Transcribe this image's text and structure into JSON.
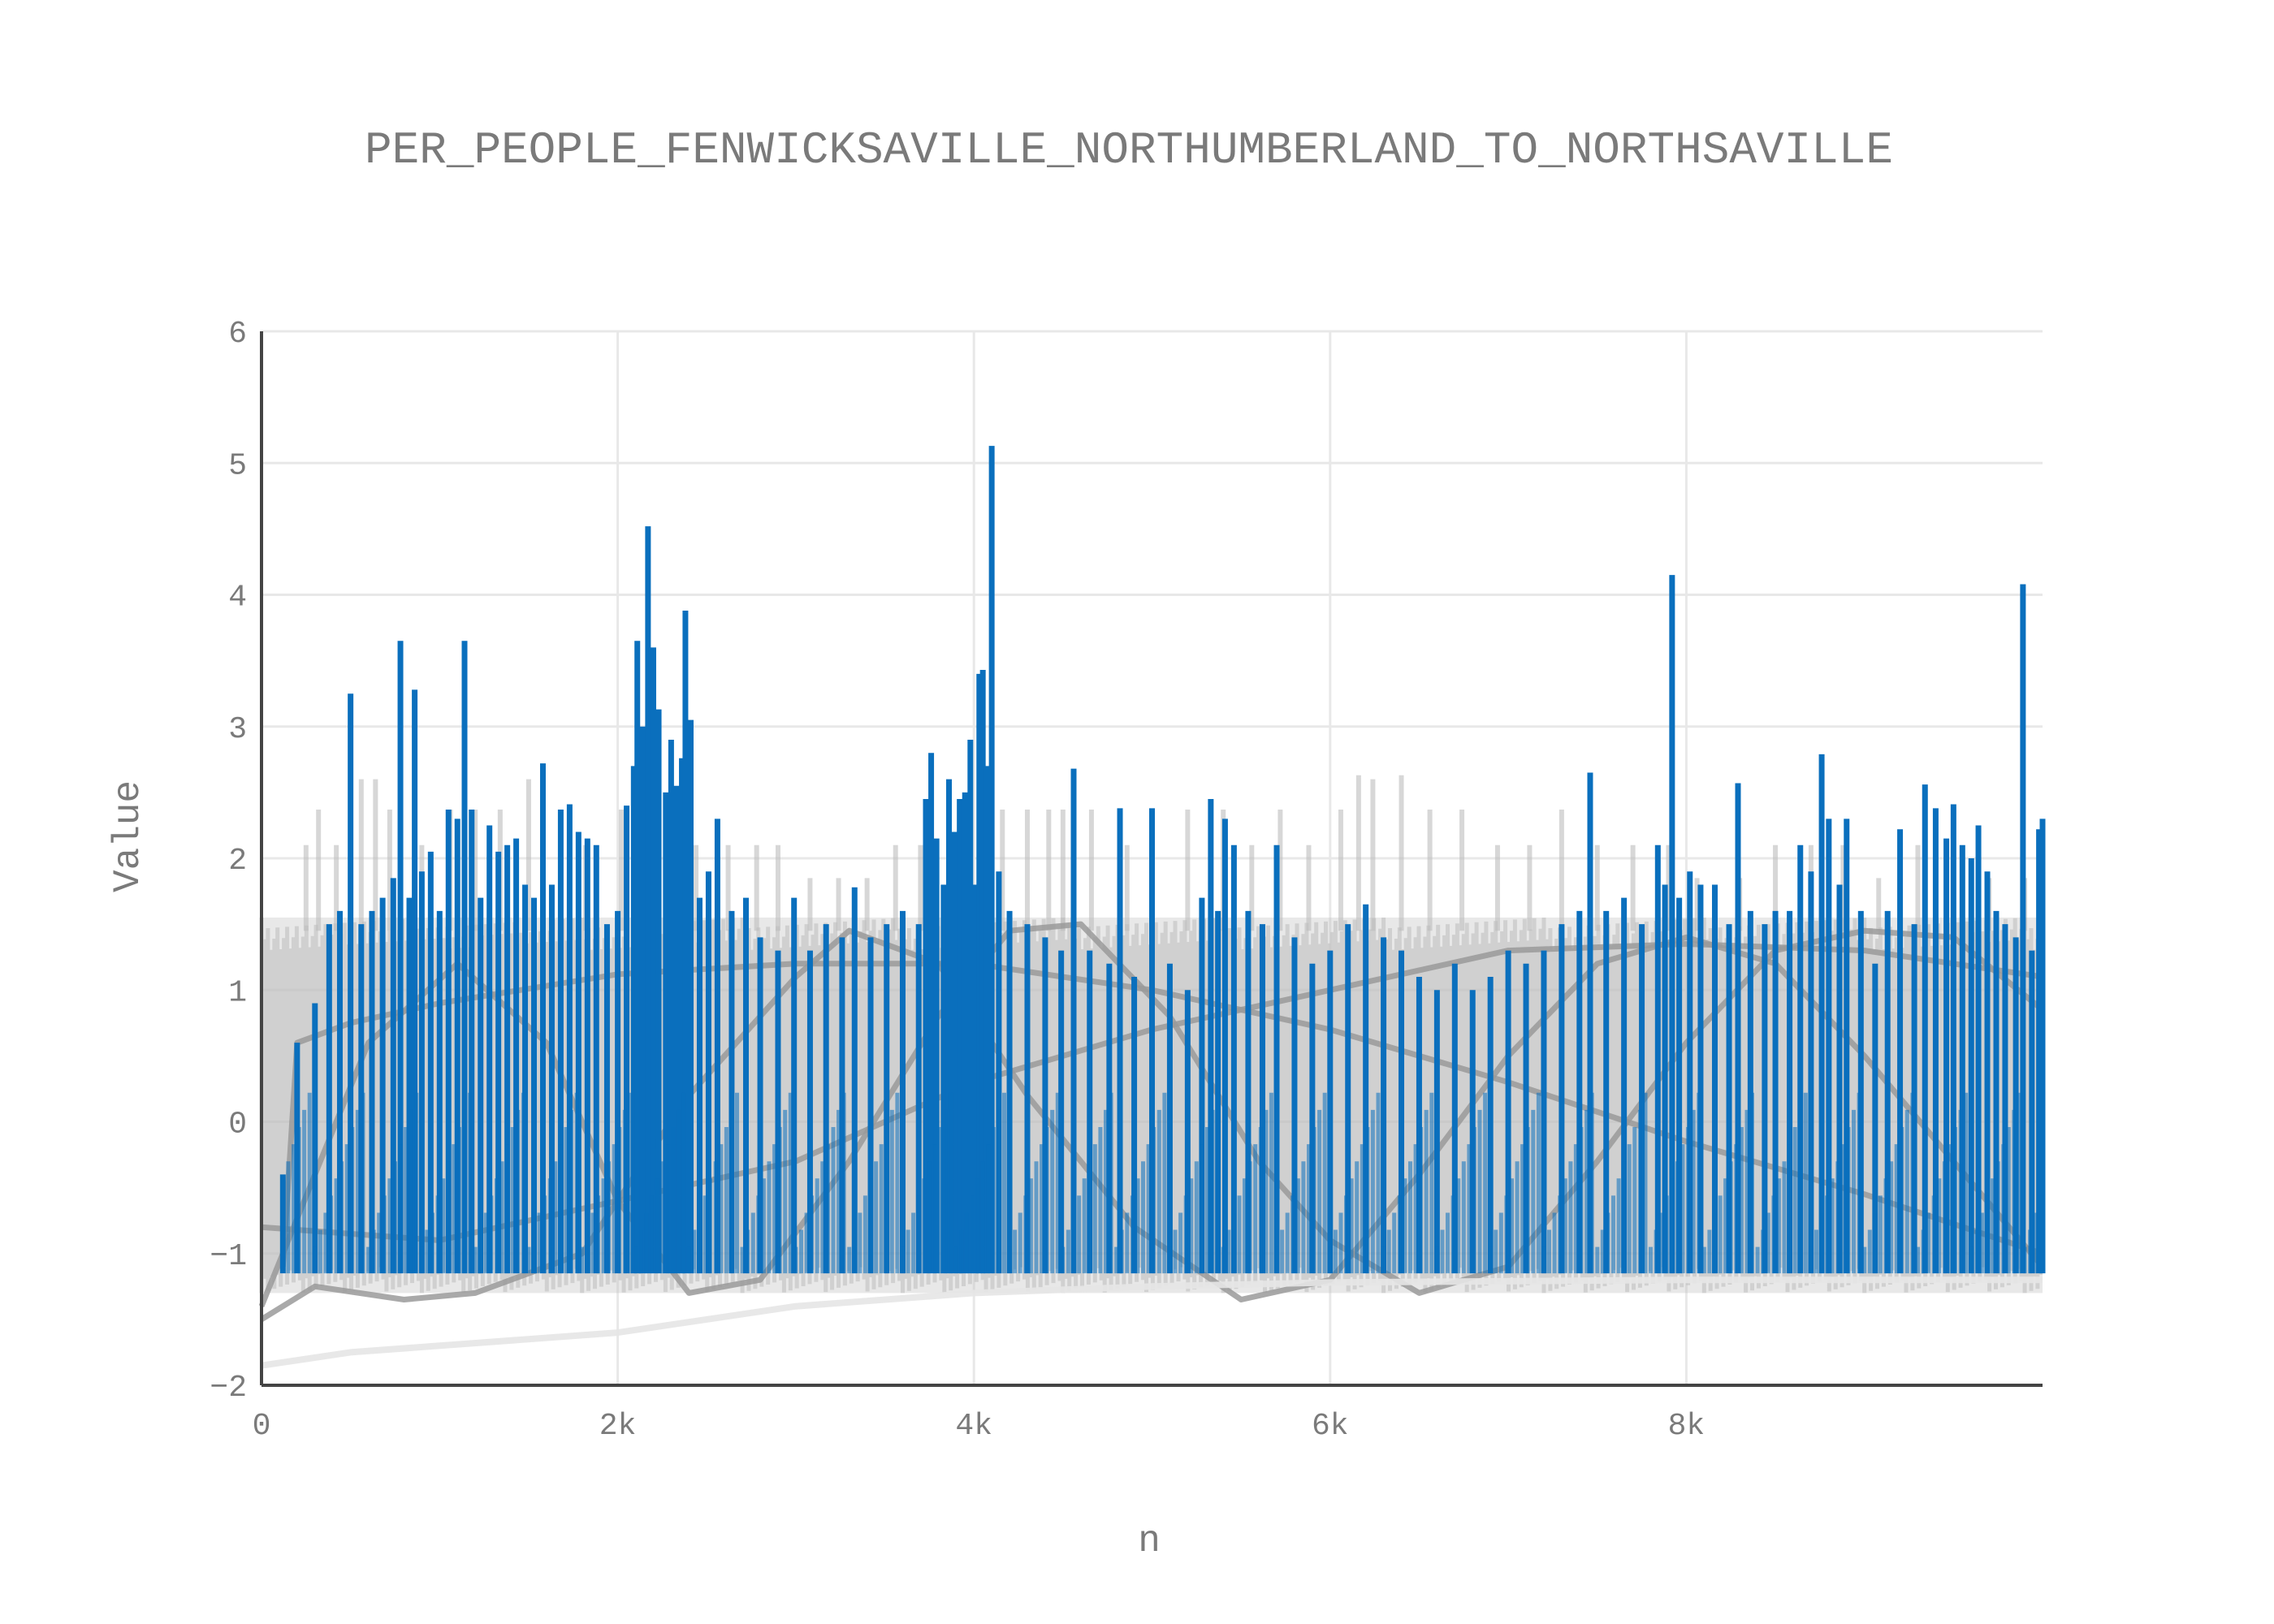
{
  "chart_data": {
    "type": "line",
    "title": "PER_PEOPLE_FENWICKSAVILLE_NORTHUMBERLAND_TO_NORTHSAVILLE",
    "xlabel": "n",
    "ylabel": "Value",
    "xlim": [
      0,
      10000
    ],
    "ylim": [
      -2,
      6
    ],
    "x_ticks": [
      {
        "value": 0,
        "label": "0"
      },
      {
        "value": 2000,
        "label": "2k"
      },
      {
        "value": 4000,
        "label": "4k"
      },
      {
        "value": 6000,
        "label": "6k"
      },
      {
        "value": 8000,
        "label": "8k"
      }
    ],
    "y_ticks": [
      {
        "value": -2,
        "label": "−2"
      },
      {
        "value": -1,
        "label": "−1"
      },
      {
        "value": 0,
        "label": "0"
      },
      {
        "value": 1,
        "label": "1"
      },
      {
        "value": 2,
        "label": "2"
      },
      {
        "value": 3,
        "label": "3"
      },
      {
        "value": 4,
        "label": "4"
      },
      {
        "value": 5,
        "label": "5"
      },
      {
        "value": 6,
        "label": "6"
      }
    ],
    "grid": true,
    "legend": "none",
    "colors": {
      "highlight": "#0a6fbd",
      "background_series": "#bdbdbd",
      "smooth_series": "#9a9a9a",
      "text": "#7a7a7a",
      "grid": "#e8e8e8",
      "axis": "#444444"
    },
    "series": [
      {
        "role": "highlight",
        "style": "spikes",
        "baseline": -1.15,
        "values": [
          [
            120,
            -0.4
          ],
          [
            200,
            0.6
          ],
          [
            300,
            0.9
          ],
          [
            380,
            1.5
          ],
          [
            440,
            1.6
          ],
          [
            500,
            3.25
          ],
          [
            560,
            1.5
          ],
          [
            620,
            1.6
          ],
          [
            680,
            1.7
          ],
          [
            740,
            1.85
          ],
          [
            780,
            3.65
          ],
          [
            830,
            1.7
          ],
          [
            860,
            3.28
          ],
          [
            900,
            1.9
          ],
          [
            950,
            2.05
          ],
          [
            1000,
            1.6
          ],
          [
            1050,
            2.37
          ],
          [
            1100,
            2.3
          ],
          [
            1140,
            3.65
          ],
          [
            1180,
            2.37
          ],
          [
            1230,
            1.7
          ],
          [
            1280,
            2.25
          ],
          [
            1330,
            2.05
          ],
          [
            1380,
            2.1
          ],
          [
            1430,
            2.15
          ],
          [
            1480,
            1.8
          ],
          [
            1530,
            1.7
          ],
          [
            1580,
            2.72
          ],
          [
            1630,
            1.8
          ],
          [
            1680,
            2.37
          ],
          [
            1730,
            2.41
          ],
          [
            1780,
            2.2
          ],
          [
            1830,
            2.15
          ],
          [
            1880,
            2.1
          ],
          [
            1940,
            1.5
          ],
          [
            2000,
            1.6
          ],
          [
            2050,
            2.4
          ],
          [
            2090,
            2.7
          ],
          [
            2110,
            3.65
          ],
          [
            2140,
            3.0
          ],
          [
            2170,
            4.52
          ],
          [
            2200,
            3.6
          ],
          [
            2230,
            3.13
          ],
          [
            2270,
            2.5
          ],
          [
            2300,
            2.9
          ],
          [
            2330,
            2.55
          ],
          [
            2360,
            2.76
          ],
          [
            2380,
            3.88
          ],
          [
            2410,
            3.05
          ],
          [
            2460,
            1.7
          ],
          [
            2510,
            1.9
          ],
          [
            2560,
            2.3
          ],
          [
            2640,
            1.6
          ],
          [
            2720,
            1.7
          ],
          [
            2800,
            1.4
          ],
          [
            2900,
            1.3
          ],
          [
            2990,
            1.7
          ],
          [
            3080,
            1.3
          ],
          [
            3170,
            1.5
          ],
          [
            3260,
            1.4
          ],
          [
            3330,
            1.78
          ],
          [
            3420,
            1.4
          ],
          [
            3510,
            1.5
          ],
          [
            3600,
            1.6
          ],
          [
            3690,
            1.5
          ],
          [
            3730,
            2.45
          ],
          [
            3760,
            2.8
          ],
          [
            3790,
            2.15
          ],
          [
            3830,
            1.8
          ],
          [
            3860,
            2.6
          ],
          [
            3890,
            2.2
          ],
          [
            3920,
            2.45
          ],
          [
            3950,
            2.5
          ],
          [
            3980,
            2.9
          ],
          [
            4010,
            1.8
          ],
          [
            4030,
            3.4
          ],
          [
            4050,
            3.43
          ],
          [
            4070,
            2.7
          ],
          [
            4100,
            5.13
          ],
          [
            4140,
            1.9
          ],
          [
            4200,
            1.6
          ],
          [
            4300,
            1.5
          ],
          [
            4400,
            1.4
          ],
          [
            4490,
            1.3
          ],
          [
            4560,
            2.68
          ],
          [
            4650,
            1.3
          ],
          [
            4760,
            1.2
          ],
          [
            4820,
            2.38
          ],
          [
            4900,
            1.1
          ],
          [
            5000,
            2.38
          ],
          [
            5100,
            1.2
          ],
          [
            5200,
            1.0
          ],
          [
            5280,
            1.7
          ],
          [
            5330,
            2.45
          ],
          [
            5370,
            1.6
          ],
          [
            5410,
            2.3
          ],
          [
            5460,
            2.1
          ],
          [
            5540,
            1.6
          ],
          [
            5620,
            1.5
          ],
          [
            5700,
            2.1
          ],
          [
            5800,
            1.4
          ],
          [
            5900,
            1.2
          ],
          [
            6000,
            1.3
          ],
          [
            6100,
            1.5
          ],
          [
            6200,
            1.65
          ],
          [
            6300,
            1.4
          ],
          [
            6400,
            1.3
          ],
          [
            6500,
            1.1
          ],
          [
            6600,
            1.0
          ],
          [
            6700,
            1.2
          ],
          [
            6800,
            1.0
          ],
          [
            6900,
            1.1
          ],
          [
            7000,
            1.3
          ],
          [
            7100,
            1.2
          ],
          [
            7200,
            1.3
          ],
          [
            7300,
            1.5
          ],
          [
            7400,
            1.6
          ],
          [
            7460,
            2.65
          ],
          [
            7550,
            1.6
          ],
          [
            7650,
            1.7
          ],
          [
            7750,
            1.5
          ],
          [
            7840,
            2.1
          ],
          [
            7880,
            1.8
          ],
          [
            7920,
            4.15
          ],
          [
            7960,
            1.7
          ],
          [
            8020,
            1.9
          ],
          [
            8080,
            1.8
          ],
          [
            8160,
            1.8
          ],
          [
            8240,
            1.5
          ],
          [
            8290,
            2.57
          ],
          [
            8360,
            1.6
          ],
          [
            8440,
            1.5
          ],
          [
            8500,
            1.6
          ],
          [
            8580,
            1.6
          ],
          [
            8640,
            2.1
          ],
          [
            8700,
            1.9
          ],
          [
            8760,
            2.79
          ],
          [
            8800,
            2.3
          ],
          [
            8860,
            1.8
          ],
          [
            8900,
            2.3
          ],
          [
            8980,
            1.6
          ],
          [
            9060,
            1.2
          ],
          [
            9130,
            1.6
          ],
          [
            9200,
            2.22
          ],
          [
            9280,
            1.5
          ],
          [
            9340,
            2.56
          ],
          [
            9400,
            2.38
          ],
          [
            9460,
            2.15
          ],
          [
            9500,
            2.41
          ],
          [
            9550,
            2.1
          ],
          [
            9600,
            2.0
          ],
          [
            9640,
            2.25
          ],
          [
            9690,
            1.9
          ],
          [
            9740,
            1.6
          ],
          [
            9790,
            1.5
          ],
          [
            9850,
            1.4
          ],
          [
            9890,
            4.08
          ],
          [
            9940,
            1.3
          ],
          [
            9980,
            2.22
          ],
          [
            10000,
            2.3
          ]
        ]
      },
      {
        "role": "background_band",
        "style": "dense-band",
        "x_range": [
          0,
          10000
        ],
        "upper": 1.55,
        "lower": -1.3,
        "spike_values": [
          [
            250,
            2.1
          ],
          [
            320,
            2.37
          ],
          [
            420,
            2.1
          ],
          [
            560,
            2.6
          ],
          [
            640,
            2.6
          ],
          [
            720,
            2.37
          ],
          [
            900,
            2.1
          ],
          [
            1060,
            2.37
          ],
          [
            1200,
            2.37
          ],
          [
            1340,
            2.37
          ],
          [
            1500,
            2.6
          ],
          [
            1680,
            2.37
          ],
          [
            1820,
            2.1
          ],
          [
            2020,
            2.37
          ],
          [
            2200,
            2.37
          ],
          [
            2440,
            2.1
          ],
          [
            2620,
            2.1
          ],
          [
            2780,
            2.1
          ],
          [
            2900,
            2.1
          ],
          [
            3080,
            1.85
          ],
          [
            3240,
            1.85
          ],
          [
            3400,
            1.85
          ],
          [
            3560,
            2.1
          ],
          [
            3700,
            2.1
          ],
          [
            3960,
            2.1
          ],
          [
            4160,
            2.37
          ],
          [
            4300,
            2.37
          ],
          [
            4420,
            2.37
          ],
          [
            4500,
            2.37
          ],
          [
            4660,
            2.37
          ],
          [
            4860,
            2.1
          ],
          [
            5000,
            2.1
          ],
          [
            5200,
            2.37
          ],
          [
            5400,
            2.37
          ],
          [
            5560,
            2.1
          ],
          [
            5720,
            2.37
          ],
          [
            5880,
            2.1
          ],
          [
            6060,
            2.37
          ],
          [
            6160,
            2.63
          ],
          [
            6240,
            2.6
          ],
          [
            6400,
            2.63
          ],
          [
            6560,
            2.37
          ],
          [
            6740,
            2.37
          ],
          [
            6940,
            2.1
          ],
          [
            7120,
            2.1
          ],
          [
            7300,
            2.37
          ],
          [
            7500,
            2.1
          ],
          [
            7700,
            2.1
          ],
          [
            7900,
            2.1
          ],
          [
            8060,
            1.85
          ],
          [
            8300,
            1.85
          ],
          [
            8500,
            2.1
          ],
          [
            8700,
            2.1
          ],
          [
            8880,
            2.1
          ],
          [
            9080,
            1.85
          ],
          [
            9300,
            2.1
          ],
          [
            9500,
            2.1
          ],
          [
            9700,
            1.85
          ],
          [
            9900,
            1.85
          ]
        ]
      },
      {
        "role": "smooth",
        "name_hidden": true,
        "values": [
          [
            120,
            -1.1
          ],
          [
            200,
            0.6
          ],
          [
            500,
            0.75
          ],
          [
            1000,
            0.9
          ],
          [
            2000,
            1.12
          ],
          [
            3000,
            1.2
          ],
          [
            4000,
            1.2
          ],
          [
            5000,
            1.0
          ],
          [
            6000,
            0.7
          ],
          [
            7000,
            0.3
          ],
          [
            8000,
            -0.15
          ],
          [
            9000,
            -0.55
          ],
          [
            10000,
            -1.0
          ]
        ]
      },
      {
        "role": "smooth",
        "name_hidden": true,
        "values": [
          [
            0,
            -0.8
          ],
          [
            1000,
            -0.9
          ],
          [
            2000,
            -0.6
          ],
          [
            3000,
            -0.3
          ],
          [
            4000,
            0.3
          ],
          [
            5000,
            0.7
          ],
          [
            6000,
            1.0
          ],
          [
            7000,
            1.3
          ],
          [
            8000,
            1.35
          ],
          [
            9000,
            1.3
          ],
          [
            10000,
            1.1
          ]
        ]
      },
      {
        "role": "smooth",
        "name_hidden": true,
        "values": [
          [
            0,
            -1.5
          ],
          [
            300,
            -1.25
          ],
          [
            800,
            -1.35
          ],
          [
            1200,
            -1.3
          ],
          [
            1800,
            -1.0
          ],
          [
            2400,
            0.2
          ],
          [
            3000,
            1.1
          ],
          [
            3300,
            1.45
          ],
          [
            3800,
            1.2
          ],
          [
            4300,
            0.2
          ],
          [
            4900,
            -0.8
          ],
          [
            5500,
            -1.35
          ],
          [
            6000,
            -1.2
          ],
          [
            6500,
            -0.4
          ],
          [
            7000,
            0.5
          ],
          [
            7500,
            1.2
          ],
          [
            8000,
            1.4
          ],
          [
            8500,
            1.2
          ],
          [
            9000,
            0.5
          ],
          [
            9500,
            -0.3
          ],
          [
            10000,
            -1.1
          ]
        ]
      },
      {
        "role": "smooth",
        "name_hidden": true,
        "values": [
          [
            0,
            -1.4
          ],
          [
            600,
            0.6
          ],
          [
            1100,
            1.2
          ],
          [
            1600,
            0.6
          ],
          [
            2000,
            -0.6
          ],
          [
            2400,
            -1.3
          ],
          [
            2800,
            -1.2
          ],
          [
            3300,
            -0.3
          ],
          [
            3800,
            0.8
          ],
          [
            4200,
            1.45
          ],
          [
            4600,
            1.5
          ],
          [
            5100,
            0.8
          ],
          [
            5600,
            -0.3
          ],
          [
            6000,
            -0.9
          ],
          [
            6500,
            -1.3
          ],
          [
            7000,
            -1.1
          ],
          [
            7500,
            -0.3
          ],
          [
            8000,
            0.6
          ],
          [
            8500,
            1.3
          ],
          [
            9000,
            1.45
          ],
          [
            9500,
            1.4
          ],
          [
            10000,
            0.85
          ]
        ]
      },
      {
        "role": "faint",
        "name_hidden": true,
        "values": [
          [
            0,
            -1.85
          ],
          [
            500,
            -1.75
          ],
          [
            1000,
            -1.7
          ],
          [
            2000,
            -1.6
          ],
          [
            3000,
            -1.4
          ],
          [
            4000,
            -1.3
          ],
          [
            5000,
            -1.25
          ],
          [
            6000,
            -1.22
          ],
          [
            8000,
            -1.2
          ],
          [
            10000,
            -1.2
          ]
        ]
      }
    ]
  }
}
